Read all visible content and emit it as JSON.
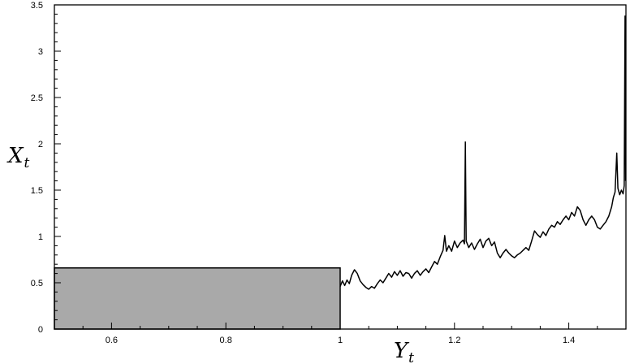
{
  "chart_data": {
    "type": "line",
    "xlabel": "Y",
    "xlabel_sub": "t",
    "ylabel": "X",
    "ylabel_sub": "t",
    "xlim": [
      0.5,
      1.5
    ],
    "ylim": [
      0,
      3.5
    ],
    "x_ticks": [
      0.6,
      0.8,
      1,
      1.2,
      1.4
    ],
    "x_tick_labels": [
      "0.6",
      "0.8",
      "1",
      "1.2",
      "1.4"
    ],
    "y_ticks": [
      0,
      0.5,
      1,
      1.5,
      2,
      2.5,
      3,
      3.5
    ],
    "y_tick_labels": [
      "0",
      "0.5",
      "1",
      "1.5",
      "2",
      "2.5",
      "3",
      "3.5"
    ],
    "grid": false,
    "shaded_region": {
      "x": [
        0.5,
        1.0
      ],
      "y": [
        0,
        0.66
      ],
      "color": "#a9a9a9"
    },
    "series": [
      {
        "color": "#000000",
        "points": [
          [
            1.0,
            0.46
          ],
          [
            1.004,
            0.52
          ],
          [
            1.008,
            0.47
          ],
          [
            1.012,
            0.53
          ],
          [
            1.016,
            0.49
          ],
          [
            1.02,
            0.58
          ],
          [
            1.025,
            0.64
          ],
          [
            1.03,
            0.6
          ],
          [
            1.035,
            0.52
          ],
          [
            1.04,
            0.48
          ],
          [
            1.045,
            0.45
          ],
          [
            1.05,
            0.43
          ],
          [
            1.055,
            0.46
          ],
          [
            1.06,
            0.44
          ],
          [
            1.065,
            0.49
          ],
          [
            1.07,
            0.53
          ],
          [
            1.075,
            0.5
          ],
          [
            1.08,
            0.55
          ],
          [
            1.085,
            0.6
          ],
          [
            1.09,
            0.56
          ],
          [
            1.095,
            0.62
          ],
          [
            1.1,
            0.58
          ],
          [
            1.105,
            0.63
          ],
          [
            1.11,
            0.57
          ],
          [
            1.115,
            0.61
          ],
          [
            1.12,
            0.6
          ],
          [
            1.125,
            0.55
          ],
          [
            1.13,
            0.6
          ],
          [
            1.135,
            0.63
          ],
          [
            1.14,
            0.58
          ],
          [
            1.145,
            0.62
          ],
          [
            1.15,
            0.65
          ],
          [
            1.155,
            0.61
          ],
          [
            1.16,
            0.67
          ],
          [
            1.165,
            0.73
          ],
          [
            1.17,
            0.7
          ],
          [
            1.175,
            0.78
          ],
          [
            1.18,
            0.85
          ],
          [
            1.183,
            1.01
          ],
          [
            1.186,
            0.84
          ],
          [
            1.19,
            0.9
          ],
          [
            1.195,
            0.84
          ],
          [
            1.2,
            0.95
          ],
          [
            1.205,
            0.88
          ],
          [
            1.21,
            0.93
          ],
          [
            1.215,
            0.96
          ],
          [
            1.2175,
            0.92
          ],
          [
            1.219,
            2.02
          ],
          [
            1.2205,
            0.95
          ],
          [
            1.225,
            0.88
          ],
          [
            1.23,
            0.93
          ],
          [
            1.235,
            0.86
          ],
          [
            1.24,
            0.92
          ],
          [
            1.245,
            0.97
          ],
          [
            1.25,
            0.88
          ],
          [
            1.255,
            0.95
          ],
          [
            1.26,
            0.98
          ],
          [
            1.265,
            0.9
          ],
          [
            1.27,
            0.94
          ],
          [
            1.275,
            0.82
          ],
          [
            1.28,
            0.77
          ],
          [
            1.285,
            0.82
          ],
          [
            1.29,
            0.86
          ],
          [
            1.295,
            0.82
          ],
          [
            1.3,
            0.79
          ],
          [
            1.305,
            0.77
          ],
          [
            1.31,
            0.8
          ],
          [
            1.315,
            0.82
          ],
          [
            1.32,
            0.85
          ],
          [
            1.325,
            0.88
          ],
          [
            1.33,
            0.85
          ],
          [
            1.335,
            0.95
          ],
          [
            1.34,
            1.06
          ],
          [
            1.345,
            1.02
          ],
          [
            1.35,
            0.99
          ],
          [
            1.355,
            1.05
          ],
          [
            1.36,
            1.01
          ],
          [
            1.365,
            1.08
          ],
          [
            1.37,
            1.12
          ],
          [
            1.375,
            1.1
          ],
          [
            1.38,
            1.16
          ],
          [
            1.385,
            1.13
          ],
          [
            1.39,
            1.18
          ],
          [
            1.395,
            1.22
          ],
          [
            1.4,
            1.18
          ],
          [
            1.405,
            1.26
          ],
          [
            1.41,
            1.22
          ],
          [
            1.415,
            1.32
          ],
          [
            1.42,
            1.28
          ],
          [
            1.425,
            1.18
          ],
          [
            1.43,
            1.12
          ],
          [
            1.435,
            1.18
          ],
          [
            1.44,
            1.22
          ],
          [
            1.445,
            1.18
          ],
          [
            1.45,
            1.1
          ],
          [
            1.455,
            1.08
          ],
          [
            1.46,
            1.12
          ],
          [
            1.465,
            1.16
          ],
          [
            1.47,
            1.22
          ],
          [
            1.475,
            1.32
          ],
          [
            1.478,
            1.42
          ],
          [
            1.481,
            1.48
          ],
          [
            1.484,
            1.9
          ],
          [
            1.486,
            1.52
          ],
          [
            1.489,
            1.45
          ],
          [
            1.492,
            1.5
          ],
          [
            1.495,
            1.46
          ],
          [
            1.497,
            1.55
          ],
          [
            1.4985,
            3.38
          ],
          [
            1.4995,
            1.6
          ]
        ]
      }
    ]
  }
}
